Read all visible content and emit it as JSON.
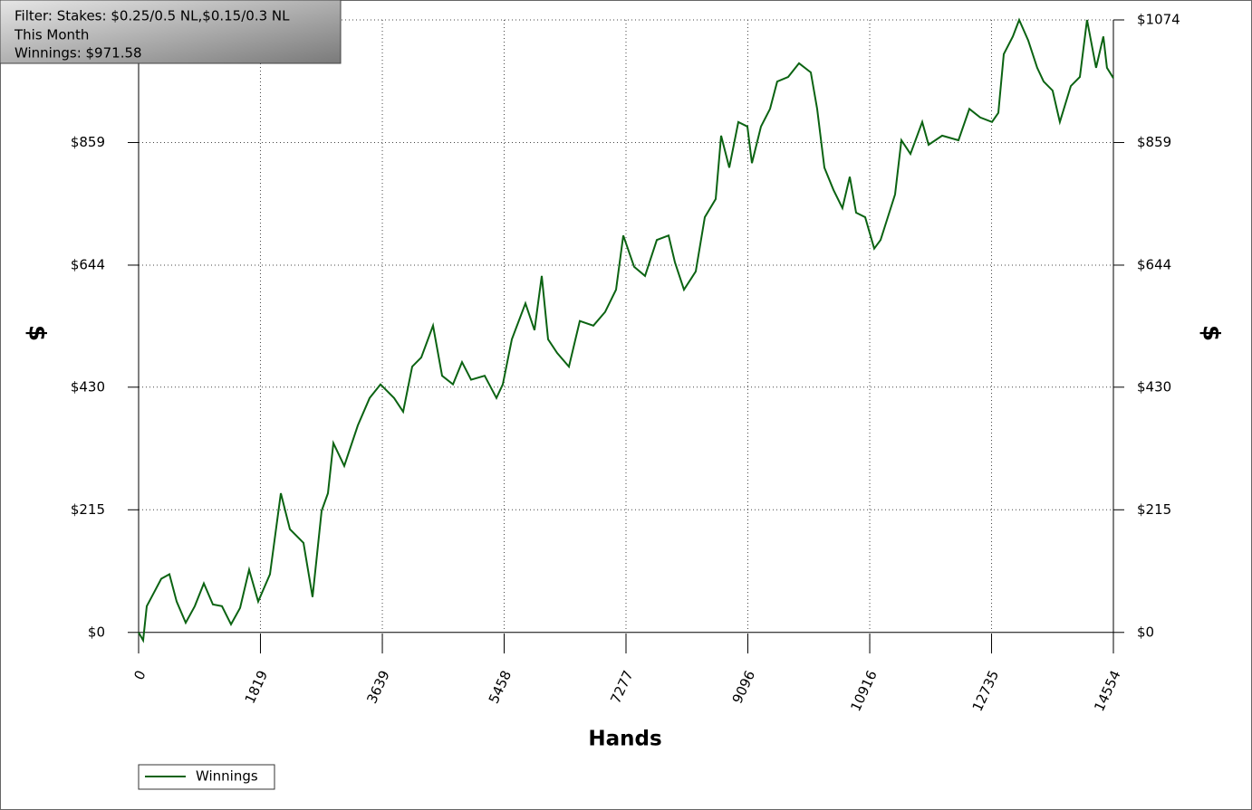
{
  "chart_data": {
    "type": "line",
    "filter_lines": [
      "Filter: Stakes: $0.25/0.5 NL,$0.15/0.3 NL",
      "This Month",
      "Winnings: $971.58"
    ],
    "xlabel": "Hands",
    "ylabel": "$",
    "y2label": "$",
    "xlim": [
      0,
      14554
    ],
    "xticks": [
      0,
      1819,
      3639,
      5458,
      7277,
      9096,
      10916,
      12735,
      14554
    ],
    "ylim": [
      -21,
      1074
    ],
    "yticks": [
      {
        "value": 0,
        "label": "$0"
      },
      {
        "value": 215,
        "label": "$215"
      },
      {
        "value": 430,
        "label": "$430"
      },
      {
        "value": 644,
        "label": "$644"
      },
      {
        "value": 859,
        "label": "$859"
      },
      {
        "value": 1074,
        "label": "$1074"
      }
    ],
    "y2lim": [
      -21,
      1074
    ],
    "y2ticks": [
      {
        "value": 0,
        "label": "$0"
      },
      {
        "value": 215,
        "label": "$215"
      },
      {
        "value": 430,
        "label": "$430"
      },
      {
        "value": 644,
        "label": "$644"
      },
      {
        "value": 859,
        "label": "$859"
      },
      {
        "value": 1074,
        "label": "$1074"
      }
    ],
    "grid": true,
    "x": [
      0,
      68,
      122,
      230,
      338,
      460,
      568,
      703,
      839,
      974,
      1109,
      1244,
      1380,
      1515,
      1650,
      1785,
      1961,
      2124,
      2259,
      2462,
      2597,
      2732,
      2827,
      2908,
      3070,
      3273,
      3449,
      3611,
      3814,
      3949,
      4085,
      4220,
      4396,
      4531,
      4693,
      4829,
      4964,
      5167,
      5343,
      5438,
      5573,
      5776,
      5911,
      6019,
      6114,
      6249,
      6425,
      6587,
      6790,
      6966,
      7128,
      7236,
      7399,
      7561,
      7737,
      7913,
      8007,
      8142,
      8318,
      8454,
      8616,
      8697,
      8819,
      8954,
      9089,
      9157,
      9292,
      9427,
      9535,
      9698,
      9860,
      10036,
      10131,
      10239,
      10374,
      10509,
      10618,
      10712,
      10848,
      10983,
      11078,
      11186,
      11294,
      11389,
      11524,
      11700,
      11795,
      11998,
      12241,
      12403,
      12566,
      12742,
      12836,
      12917,
      13052,
      13147,
      13282,
      13417,
      13512,
      13647,
      13755,
      13918,
      14053,
      14161,
      14296,
      14404,
      14458,
      14554
    ],
    "series": [
      {
        "name": "Winnings",
        "color": "#0b6312",
        "values": [
          0,
          -14,
          46,
          70,
          94,
          102,
          54,
          17,
          46,
          86,
          49,
          46,
          14,
          43,
          110,
          54,
          102,
          244,
          181,
          157,
          62,
          213,
          244,
          332,
          292,
          363,
          411,
          435,
          411,
          387,
          466,
          482,
          538,
          450,
          435,
          474,
          443,
          450,
          411,
          435,
          514,
          577,
          530,
          625,
          514,
          490,
          466,
          546,
          538,
          562,
          601,
          696,
          641,
          625,
          688,
          696,
          649,
          601,
          633,
          728,
          760,
          871,
          815,
          895,
          887,
          823,
          887,
          918,
          966,
          974,
          998,
          982,
          918,
          815,
          776,
          744,
          799,
          736,
          728,
          673,
          688,
          728,
          768,
          863,
          839,
          895,
          855,
          871,
          863,
          918,
          903,
          895,
          911,
          1014,
          1045,
          1074,
          1038,
          990,
          966,
          950,
          895,
          958,
          974,
          1074,
          990,
          1045,
          990,
          972
        ]
      }
    ]
  }
}
